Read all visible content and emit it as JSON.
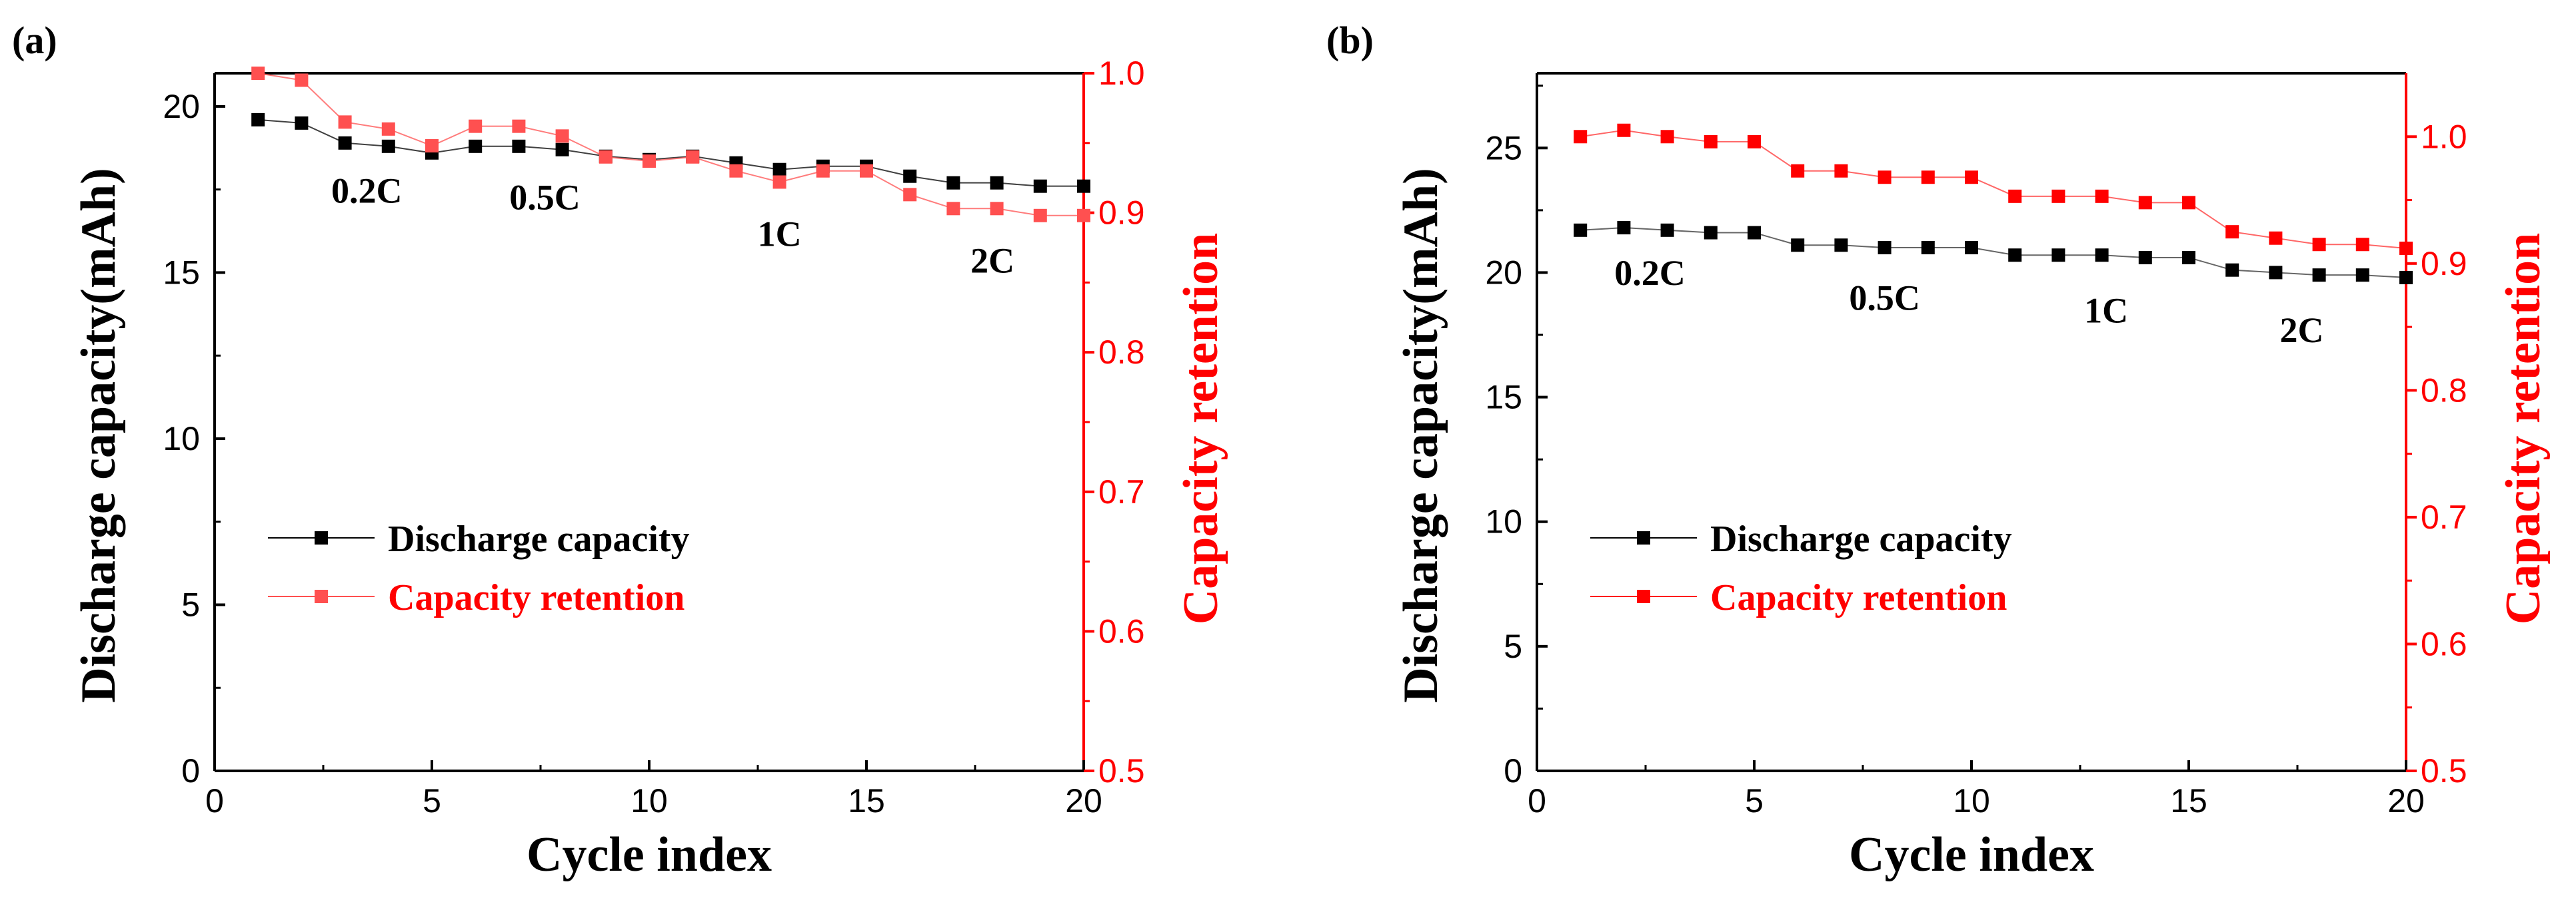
{
  "colors": {
    "black": "#000000",
    "red": "#ff0000",
    "lightred": "#ff5a5a",
    "axis": "#000000"
  },
  "chart_data": [
    {
      "panel_label": "(a)",
      "type": "line",
      "xlabel": "Cycle index",
      "ylabel_left": "Discharge capacity(mAh)",
      "ylabel_right": "Capacity retention",
      "xlim": [
        0,
        20
      ],
      "ylim_left": [
        0,
        21
      ],
      "ylim_right": [
        0.5,
        1.0
      ],
      "xticks": [
        0,
        5,
        10,
        15,
        20
      ],
      "xtick_labels": [
        "0",
        "5",
        "10",
        "15",
        "20"
      ],
      "yticks_left": [
        0,
        5,
        10,
        15,
        20
      ],
      "ytick_labels_left": [
        "0",
        "5",
        "10",
        "15",
        "20"
      ],
      "yticks_right": [
        0.5,
        0.6,
        0.7,
        0.8,
        0.9,
        1.0
      ],
      "ytick_labels_right": [
        "0.5",
        "0.6",
        "0.7",
        "0.8",
        "0.9",
        "1.0"
      ],
      "x": [
        1,
        2,
        3,
        4,
        5,
        6,
        7,
        8,
        9,
        10,
        11,
        12,
        13,
        14,
        15,
        16,
        17,
        18,
        19,
        20
      ],
      "series": [
        {
          "name": "Discharge capacity",
          "axis": "left",
          "color": "#000000",
          "values": [
            19.6,
            19.5,
            18.9,
            18.8,
            18.6,
            18.8,
            18.8,
            18.7,
            18.5,
            18.4,
            18.5,
            18.3,
            18.1,
            18.2,
            18.2,
            17.9,
            17.7,
            17.7,
            17.6,
            17.6
          ]
        },
        {
          "name": "Capacity retention",
          "axis": "right",
          "color": "#ff5050",
          "values": [
            1.0,
            0.995,
            0.965,
            0.96,
            0.948,
            0.962,
            0.962,
            0.955,
            0.94,
            0.937,
            0.94,
            0.93,
            0.922,
            0.93,
            0.93,
            0.913,
            0.903,
            0.903,
            0.898,
            0.898
          ]
        }
      ],
      "annotations": [
        {
          "text": "0.2C",
          "x": 3.5,
          "y_left": 17.1
        },
        {
          "text": "0.5C",
          "x": 7.6,
          "y_left": 16.9
        },
        {
          "text": "1C",
          "x": 13.0,
          "y_left": 15.8
        },
        {
          "text": "2C",
          "x": 17.9,
          "y_left": 15.0
        }
      ],
      "legend": [
        "Discharge capacity",
        "Capacity retention"
      ],
      "legend_position": "center-left"
    },
    {
      "panel_label": "(b)",
      "type": "line",
      "xlabel": "Cycle index",
      "ylabel_left": "Discharge capacity(mAh)",
      "ylabel_right": "Capacity retention",
      "xlim": [
        0,
        20
      ],
      "ylim_left": [
        0,
        28
      ],
      "ylim_right": [
        0.5,
        1.05
      ],
      "xticks": [
        0,
        5,
        10,
        15,
        20
      ],
      "xtick_labels": [
        "0",
        "5",
        "10",
        "15",
        "20"
      ],
      "yticks_left": [
        0,
        5,
        10,
        15,
        20,
        25
      ],
      "ytick_labels_left": [
        "0",
        "5",
        "10",
        "15",
        "20",
        "25"
      ],
      "yticks_right": [
        0.5,
        0.6,
        0.7,
        0.8,
        0.9,
        1.0
      ],
      "ytick_labels_right": [
        "0.5",
        "0.6",
        "0.7",
        "0.8",
        "0.9",
        "1.0"
      ],
      "x": [
        1,
        2,
        3,
        4,
        5,
        6,
        7,
        8,
        9,
        10,
        11,
        12,
        13,
        14,
        15,
        16,
        17,
        18,
        19,
        20
      ],
      "series": [
        {
          "name": "Discharge capacity",
          "axis": "left",
          "color": "#000000",
          "values": [
            21.7,
            21.8,
            21.7,
            21.6,
            21.6,
            21.1,
            21.1,
            21.0,
            21.0,
            21.0,
            20.7,
            20.7,
            20.7,
            20.6,
            20.6,
            20.1,
            20.0,
            19.9,
            19.9,
            19.8
          ]
        },
        {
          "name": "Capacity retention",
          "axis": "right",
          "color": "#ff0000",
          "values": [
            1.0,
            1.005,
            1.0,
            0.996,
            0.996,
            0.973,
            0.973,
            0.968,
            0.968,
            0.968,
            0.953,
            0.953,
            0.953,
            0.948,
            0.948,
            0.925,
            0.92,
            0.915,
            0.915,
            0.912
          ]
        }
      ],
      "annotations": [
        {
          "text": "0.2C",
          "x": 2.6,
          "y_left": 19.5
        },
        {
          "text": "0.5C",
          "x": 8.0,
          "y_left": 18.5
        },
        {
          "text": "1C",
          "x": 13.1,
          "y_left": 18.0
        },
        {
          "text": "2C",
          "x": 17.6,
          "y_left": 17.2
        }
      ],
      "legend": [
        "Discharge capacity",
        "Capacity retention"
      ],
      "legend_position": "center-left"
    }
  ]
}
